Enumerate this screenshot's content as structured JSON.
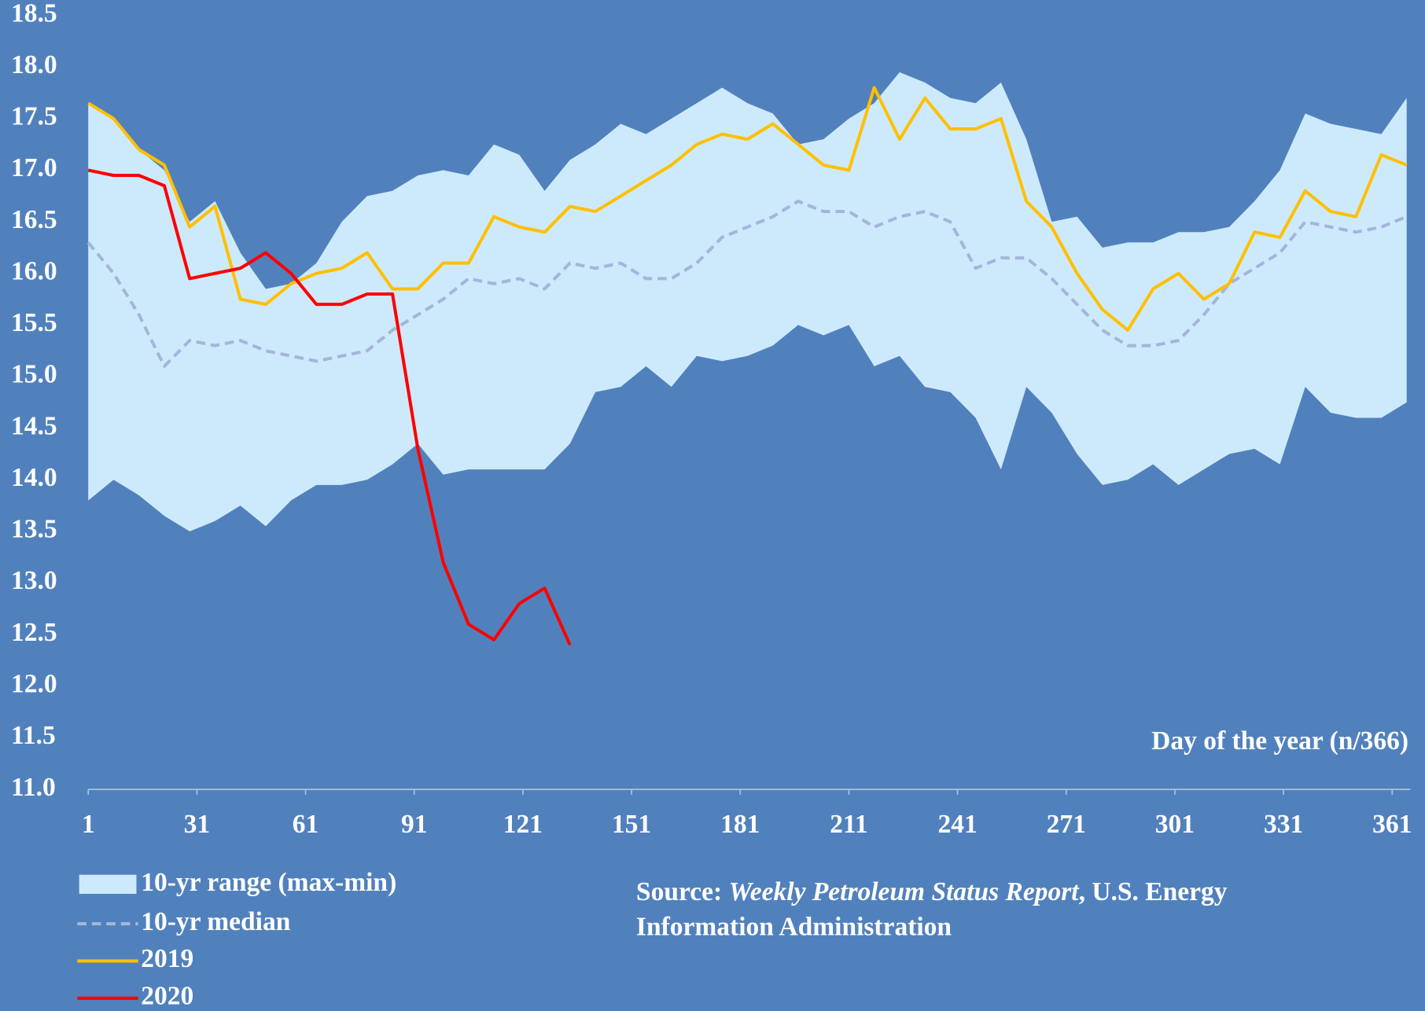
{
  "chart_data": {
    "type": "line",
    "annotation": "Day of the year (n/366)",
    "x": [
      1,
      8,
      15,
      22,
      29,
      36,
      43,
      50,
      57,
      64,
      71,
      78,
      85,
      92,
      99,
      106,
      113,
      120,
      127,
      134,
      141,
      148,
      155,
      162,
      169,
      176,
      183,
      190,
      197,
      204,
      211,
      218,
      225,
      232,
      239,
      246,
      253,
      260,
      267,
      274,
      281,
      288,
      295,
      302,
      309,
      316,
      323,
      330,
      337,
      344,
      351,
      358,
      365
    ],
    "band": {
      "name": "10-yr range (max-min)",
      "color": "#cdeafd",
      "max": [
        17.65,
        17.5,
        17.2,
        17.0,
        16.5,
        16.7,
        16.2,
        15.85,
        15.9,
        16.1,
        16.5,
        16.75,
        16.8,
        16.95,
        17.0,
        16.95,
        17.25,
        17.15,
        16.8,
        17.1,
        17.25,
        17.45,
        17.35,
        17.5,
        17.65,
        17.8,
        17.65,
        17.55,
        17.25,
        17.3,
        17.5,
        17.65,
        17.95,
        17.85,
        17.7,
        17.65,
        17.85,
        17.3,
        16.5,
        16.55,
        16.25,
        16.3,
        16.3,
        16.4,
        16.4,
        16.45,
        16.7,
        17.0,
        17.55,
        17.45,
        17.4,
        17.35,
        17.7
      ],
      "min": [
        13.8,
        14.0,
        13.85,
        13.65,
        13.5,
        13.6,
        13.75,
        13.55,
        13.8,
        13.95,
        13.95,
        14.0,
        14.15,
        14.35,
        14.05,
        14.1,
        14.1,
        14.1,
        14.1,
        14.35,
        14.85,
        14.9,
        15.1,
        14.9,
        15.2,
        15.15,
        15.2,
        15.3,
        15.5,
        15.4,
        15.5,
        15.1,
        15.2,
        14.9,
        14.85,
        14.6,
        14.1,
        14.9,
        14.65,
        14.25,
        13.95,
        14.0,
        14.15,
        13.95,
        14.1,
        14.25,
        14.3,
        14.15,
        14.9,
        14.65,
        14.6,
        14.6,
        14.75
      ]
    },
    "series": [
      {
        "name": "10-yr median",
        "color": "#a3b6da",
        "dashed": true,
        "values": [
          16.3,
          16.0,
          15.6,
          15.1,
          15.35,
          15.3,
          15.35,
          15.25,
          15.2,
          15.15,
          15.2,
          15.25,
          15.45,
          15.6,
          15.75,
          15.95,
          15.9,
          15.95,
          15.85,
          16.1,
          16.05,
          16.1,
          15.95,
          15.95,
          16.1,
          16.35,
          16.45,
          16.55,
          16.7,
          16.6,
          16.6,
          16.45,
          16.55,
          16.6,
          16.5,
          16.05,
          16.15,
          16.15,
          15.95,
          15.7,
          15.45,
          15.3,
          15.3,
          15.35,
          15.6,
          15.9,
          16.05,
          16.2,
          16.5,
          16.45,
          16.4,
          16.45,
          16.55
        ]
      },
      {
        "name": "2019",
        "color": "#ffc000",
        "dashed": false,
        "values": [
          17.65,
          17.5,
          17.2,
          17.05,
          16.45,
          16.65,
          15.75,
          15.7,
          15.9,
          16.0,
          16.05,
          16.2,
          15.85,
          15.85,
          16.1,
          16.1,
          16.55,
          16.45,
          16.4,
          16.65,
          16.6,
          16.75,
          16.9,
          17.05,
          17.25,
          17.35,
          17.3,
          17.45,
          17.25,
          17.05,
          17.0,
          17.8,
          17.3,
          17.7,
          17.4,
          17.4,
          17.5,
          16.7,
          16.45,
          16.0,
          15.65,
          15.45,
          15.85,
          16.0,
          15.75,
          15.9,
          16.4,
          16.35,
          16.8,
          16.6,
          16.55,
          17.15,
          17.05
        ]
      },
      {
        "name": "2020",
        "color": "#ff0000",
        "dashed": false,
        "values": [
          17.0,
          16.95,
          16.95,
          16.85,
          15.95,
          16.0,
          16.05,
          16.2,
          16.0,
          15.7,
          15.7,
          15.8,
          15.8,
          14.3,
          13.2,
          12.6,
          12.45,
          12.8,
          12.95,
          12.4,
          null,
          null,
          null,
          null,
          null,
          null,
          null,
          null,
          null,
          null,
          null,
          null,
          null,
          null,
          null,
          null,
          null,
          null,
          null,
          null,
          null,
          null,
          null,
          null,
          null,
          null,
          null,
          null,
          null,
          null,
          null,
          null,
          null
        ]
      }
    ],
    "xlim": [
      1,
      366
    ],
    "xticks": [
      1,
      31,
      61,
      91,
      121,
      151,
      181,
      211,
      241,
      271,
      301,
      331,
      361
    ],
    "ylim": [
      11,
      18.5
    ],
    "yticks": [
      {
        "value": 11,
        "label": "11.0"
      },
      11.5,
      {
        "value": 12,
        "label": "12.0"
      },
      12.5,
      {
        "value": 13,
        "label": "13.0"
      },
      13.5,
      {
        "value": 14,
        "label": "14.0"
      },
      14.5,
      {
        "value": 15,
        "label": "15.0"
      },
      15.5,
      {
        "value": 16,
        "label": "16.0"
      },
      16.5,
      {
        "value": 17,
        "label": "17.0"
      },
      17.5,
      {
        "value": 18,
        "label": "18.0"
      },
      18.5
    ],
    "legend": "bottom-left",
    "source": {
      "prefix": "Source:",
      "italic": "Weekly Petroleum Status Report",
      "rest": ", U.S. Energy",
      "line2": "Information Administration"
    }
  }
}
